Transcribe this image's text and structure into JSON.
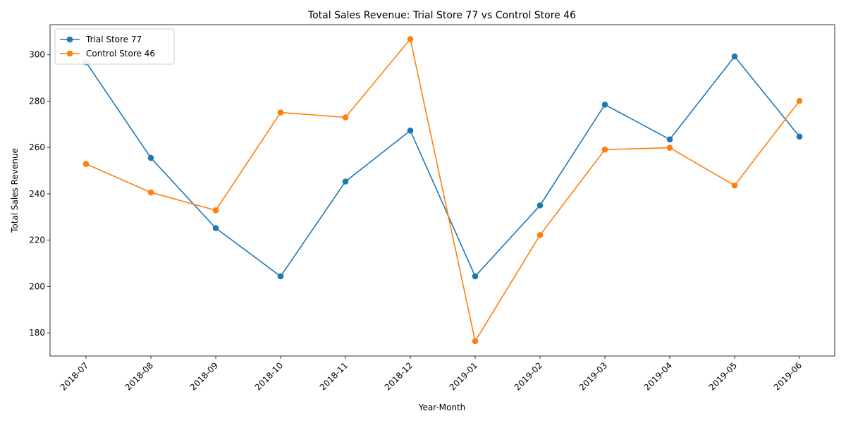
{
  "chart_data": {
    "type": "line",
    "title": "Total Sales Revenue: Trial Store 77 vs Control Store 46",
    "xlabel": "Year-Month",
    "ylabel": "Total Sales Revenue",
    "categories": [
      "2018-07",
      "2018-08",
      "2018-09",
      "2018-10",
      "2018-11",
      "2018-12",
      "2019-01",
      "2019-02",
      "2019-03",
      "2019-04",
      "2019-05",
      "2019-06"
    ],
    "ylim": [
      170,
      313
    ],
    "yticks": [
      180,
      200,
      220,
      240,
      260,
      280,
      300
    ],
    "grid": false,
    "legend_position": "top-left",
    "series": [
      {
        "name": "Trial Store 77",
        "color": "#1f77b4",
        "values": [
          296.8,
          255.5,
          225.2,
          204.4,
          245.3,
          267.3,
          204.4,
          235.0,
          278.5,
          263.5,
          299.3,
          264.7
        ]
      },
      {
        "name": "Control Store 46",
        "color": "#ff7f0e",
        "values": [
          252.9,
          240.6,
          232.9,
          275.1,
          273.0,
          306.8,
          176.4,
          222.2,
          259.1,
          259.9,
          243.6,
          280.1
        ]
      }
    ]
  }
}
